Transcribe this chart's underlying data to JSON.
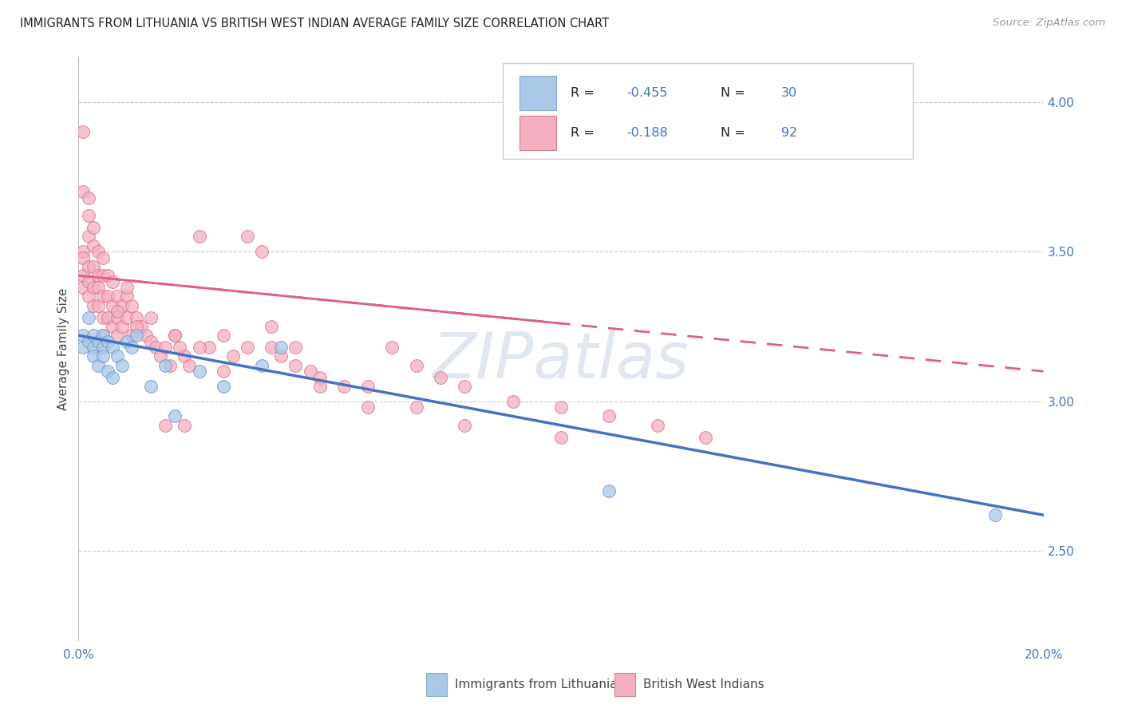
{
  "title": "IMMIGRANTS FROM LITHUANIA VS BRITISH WEST INDIAN AVERAGE FAMILY SIZE CORRELATION CHART",
  "source": "Source: ZipAtlas.com",
  "ylabel": "Average Family Size",
  "xlim": [
    0.0,
    0.2
  ],
  "ylim": [
    2.2,
    4.15
  ],
  "yticks_right": [
    2.5,
    3.0,
    3.5,
    4.0
  ],
  "color_blue_fill": "#a8c8e8",
  "color_blue_edge": "#6699cc",
  "color_pink_fill": "#f4b0c0",
  "color_pink_edge": "#e07090",
  "line_blue_color": "#4472c4",
  "line_pink_color": "#e06080",
  "watermark": "ZIPatlas",
  "watermark_color": "#ccd8e8",
  "legend_color1": "#aac8e8",
  "legend_color2": "#f4b0c0",
  "legend_edge1": "#88aad0",
  "legend_edge2": "#d08090",
  "text_blue": "#4472c4",
  "text_dark": "#222222",
  "blue_intercept": 3.22,
  "blue_slope": -3.0,
  "pink_intercept": 3.42,
  "pink_slope": -1.6,
  "blue_x": [
    0.001,
    0.001,
    0.002,
    0.002,
    0.003,
    0.003,
    0.003,
    0.004,
    0.004,
    0.005,
    0.005,
    0.005,
    0.006,
    0.006,
    0.007,
    0.007,
    0.008,
    0.009,
    0.01,
    0.011,
    0.012,
    0.015,
    0.018,
    0.02,
    0.025,
    0.03,
    0.038,
    0.042,
    0.11,
    0.19
  ],
  "blue_y": [
    3.22,
    3.18,
    3.28,
    3.2,
    3.22,
    3.18,
    3.15,
    3.2,
    3.12,
    3.18,
    3.22,
    3.15,
    3.2,
    3.1,
    3.18,
    3.08,
    3.15,
    3.12,
    3.2,
    3.18,
    3.22,
    3.05,
    3.12,
    2.95,
    3.1,
    3.05,
    3.12,
    3.18,
    2.7,
    2.62
  ],
  "pink_x": [
    0.001,
    0.001,
    0.001,
    0.001,
    0.002,
    0.002,
    0.002,
    0.002,
    0.003,
    0.003,
    0.003,
    0.003,
    0.004,
    0.004,
    0.004,
    0.004,
    0.005,
    0.005,
    0.005,
    0.005,
    0.005,
    0.006,
    0.006,
    0.006,
    0.007,
    0.007,
    0.007,
    0.008,
    0.008,
    0.008,
    0.009,
    0.009,
    0.01,
    0.01,
    0.011,
    0.011,
    0.012,
    0.013,
    0.014,
    0.015,
    0.016,
    0.017,
    0.018,
    0.019,
    0.02,
    0.021,
    0.022,
    0.023,
    0.025,
    0.027,
    0.03,
    0.032,
    0.035,
    0.038,
    0.04,
    0.042,
    0.045,
    0.048,
    0.05,
    0.055,
    0.06,
    0.065,
    0.07,
    0.075,
    0.08,
    0.09,
    0.1,
    0.11,
    0.12,
    0.13,
    0.001,
    0.001,
    0.002,
    0.002,
    0.003,
    0.01,
    0.015,
    0.02,
    0.025,
    0.03,
    0.008,
    0.012,
    0.035,
    0.04,
    0.045,
    0.05,
    0.06,
    0.07,
    0.08,
    0.1,
    0.018,
    0.022
  ],
  "pink_y": [
    3.5,
    3.42,
    3.48,
    3.38,
    3.55,
    3.45,
    3.4,
    3.35,
    3.52,
    3.45,
    3.38,
    3.32,
    3.5,
    3.42,
    3.38,
    3.32,
    3.48,
    3.42,
    3.35,
    3.28,
    3.22,
    3.42,
    3.35,
    3.28,
    3.4,
    3.32,
    3.25,
    3.35,
    3.28,
    3.22,
    3.32,
    3.25,
    3.35,
    3.28,
    3.32,
    3.22,
    3.28,
    3.25,
    3.22,
    3.2,
    3.18,
    3.15,
    3.18,
    3.12,
    3.22,
    3.18,
    3.15,
    3.12,
    3.55,
    3.18,
    3.22,
    3.15,
    3.55,
    3.5,
    3.18,
    3.15,
    3.12,
    3.1,
    3.08,
    3.05,
    3.05,
    3.18,
    3.12,
    3.08,
    3.05,
    3.0,
    2.98,
    2.95,
    2.92,
    2.88,
    3.9,
    3.7,
    3.68,
    3.62,
    3.58,
    3.38,
    3.28,
    3.22,
    3.18,
    3.1,
    3.3,
    3.25,
    3.18,
    3.25,
    3.18,
    3.05,
    2.98,
    2.98,
    2.92,
    2.88,
    2.92,
    2.92
  ]
}
